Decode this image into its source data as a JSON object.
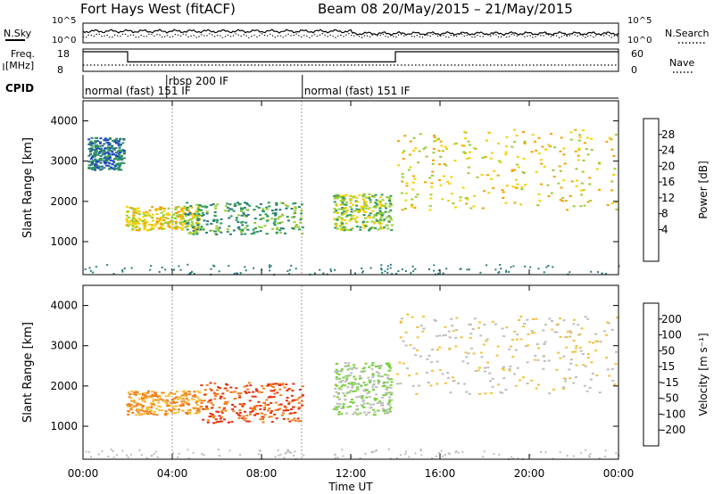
{
  "header": {
    "title": "Fort Hays West (fitACF)",
    "beam_info": "Beam 08  20/May/2015 – 21/May/2015"
  },
  "strip": {
    "nsky_label": "N.Sky",
    "nsky_ticks": [
      "10^5",
      "10^0"
    ],
    "nsearch_label": "N.Search",
    "nsearch_ticks": [
      "10^5",
      "10^0"
    ],
    "freq_label": "Freq.",
    "freq_unit": "[MHz]",
    "freq_ticks": [
      "18",
      "8"
    ],
    "nave_label": "Nave",
    "nave_ticks": [
      "60",
      "0"
    ],
    "cpid_label": "CPID",
    "cpid_segments": [
      {
        "start": 0,
        "end": 3.75,
        "label": "normal (fast) 151 IF"
      },
      {
        "start": 3.75,
        "end": 9.83,
        "label": "rbsp 200 IF"
      },
      {
        "start": 9.83,
        "end": 24,
        "label": "normal (fast) 151 IF"
      }
    ],
    "freq_series": [
      {
        "start": 0,
        "end": 2.0,
        "value": 18
      },
      {
        "start": 2.0,
        "end": 14.0,
        "value": 12
      },
      {
        "start": 14.0,
        "end": 24,
        "value": 18
      }
    ]
  },
  "panels": {
    "ylabel": "Slant Range [km]",
    "xlabel": "Time UT",
    "x_ticks": [
      "00:00",
      "04:00",
      "08:00",
      "12:00",
      "16:00",
      "20:00",
      "00:00"
    ],
    "y_ticks": [
      "1000",
      "2000",
      "3000",
      "4000"
    ]
  },
  "power_bar": {
    "label": "Power [dB]",
    "ticks": [
      "28",
      "24",
      "20",
      "16",
      "12",
      "8",
      "4"
    ],
    "colors": [
      "#0000ff",
      "#1f44c8",
      "#2e7a7a",
      "#2e9a5a",
      "#9acd32",
      "#f5d000",
      "#f5a000",
      "#f06400",
      "#e00000"
    ]
  },
  "velocity_bar": {
    "label": "Velocity [m s⁻¹]",
    "ticks": [
      "200",
      "100",
      "50",
      "15",
      "-15",
      "-50",
      "-100",
      "-200"
    ],
    "colors": [
      "#1a2aa0",
      "#2a6ad0",
      "#2e8a50",
      "#7ad040",
      "#bdbdbd",
      "#f5c040",
      "#f08020",
      "#e83010",
      "#d00000"
    ]
  },
  "chart_data": [
    {
      "type": "heatmap",
      "title": "Power [dB]",
      "xlabel": "Time UT",
      "ylabel": "Slant Range [km]",
      "xlim": [
        0,
        24
      ],
      "ylim": [
        180,
        4500
      ],
      "features": [
        {
          "t0": 1.9,
          "t1": 5.2,
          "r0": 1300,
          "r1": 1900,
          "level": 20
        },
        {
          "t0": 4.5,
          "t1": 9.8,
          "r0": 1200,
          "r1": 2000,
          "level": 12
        },
        {
          "t0": 11.2,
          "t1": 13.8,
          "r0": 1300,
          "r1": 2200,
          "level": 16
        },
        {
          "t0": 14.0,
          "t1": 24.0,
          "r0": 1800,
          "r1": 3800,
          "level": 20
        },
        {
          "t0": 0.2,
          "t1": 1.8,
          "r0": 2800,
          "r1": 3600,
          "level": 8
        }
      ]
    },
    {
      "type": "heatmap",
      "title": "Velocity [m s⁻¹]",
      "xlabel": "Time UT",
      "ylabel": "Slant Range [km]",
      "xlim": [
        0,
        24
      ],
      "ylim": [
        180,
        4500
      ],
      "features": [
        {
          "t0": 1.9,
          "t1": 5.2,
          "r0": 1300,
          "r1": 1900,
          "level": -50
        },
        {
          "t0": 5.2,
          "t1": 9.8,
          "r0": 1100,
          "r1": 2100,
          "level": -100
        },
        {
          "t0": 11.2,
          "t1": 13.8,
          "r0": 1300,
          "r1": 2600,
          "level": 15
        },
        {
          "t0": 14.0,
          "t1": 24.0,
          "r0": 1800,
          "r1": 3800,
          "level": -15
        }
      ]
    }
  ]
}
